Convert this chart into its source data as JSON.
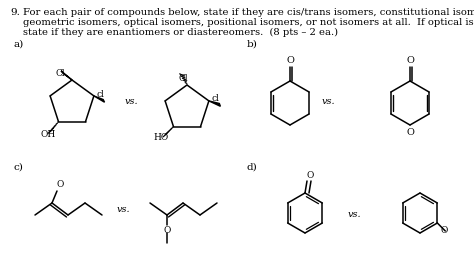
{
  "background_color": "#ffffff",
  "question_number": "9.",
  "question_text_line1": "For each pair of compounds below, state if they are cis/trans isomers, constitutional isomers,",
  "question_text_line2": "geometric isomers, optical isomers, positional isomers, or not isomers at all.  If optical isomers,",
  "question_text_line3": "state if they are enantiomers or diastereomers.  (8 pts – 2 ea.)",
  "label_a": "a)",
  "label_b": "b)",
  "label_c": "c)",
  "label_d": "d)",
  "vs_text": "vs.",
  "figsize": [
    4.74,
    2.71
  ],
  "dpi": 100
}
